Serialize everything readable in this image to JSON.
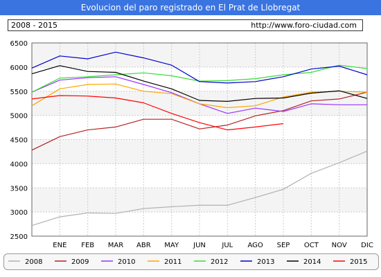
{
  "header": {
    "title": "Evolucion del paro registrado en El Prat de Llobregat",
    "period": "2008 - 2015",
    "url": "http://www.foro-ciudad.com"
  },
  "chart_data": {
    "type": "line",
    "title": "Evolucion del paro registrado en El Prat de Llobregat",
    "xlabel": "",
    "ylabel": "",
    "categories": [
      "",
      "ENE",
      "FEB",
      "MAR",
      "ABR",
      "MAY",
      "JUN",
      "JUL",
      "AGO",
      "SEP",
      "OCT",
      "NOV",
      "DIC"
    ],
    "yticks": [
      2500,
      3000,
      3500,
      4000,
      4500,
      5000,
      5500,
      6000,
      6500
    ],
    "ylim": [
      2500,
      6500
    ],
    "grid": true,
    "legend_position": "bottom",
    "series": [
      {
        "name": "2008",
        "color": "#b0b0b0",
        "values": [
          2720,
          2900,
          2980,
          2970,
          3070,
          3110,
          3140,
          3140,
          3300,
          3470,
          3800,
          4020,
          4260
        ]
      },
      {
        "name": "2009",
        "color": "#b22222",
        "values": [
          4280,
          4560,
          4700,
          4760,
          4920,
          4920,
          4720,
          4800,
          4990,
          5100,
          5300,
          5340,
          5480
        ]
      },
      {
        "name": "2010",
        "color": "#9933ff",
        "values": [
          5480,
          5730,
          5780,
          5800,
          5640,
          5470,
          5240,
          5040,
          5150,
          5080,
          5240,
          5220,
          5220
        ]
      },
      {
        "name": "2011",
        "color": "#ffa500",
        "values": [
          5200,
          5550,
          5640,
          5650,
          5500,
          5450,
          5240,
          5160,
          5200,
          5380,
          5480,
          5500,
          5480
        ]
      },
      {
        "name": "2012",
        "color": "#33dd33",
        "values": [
          5480,
          5770,
          5800,
          5840,
          5880,
          5820,
          5710,
          5720,
          5760,
          5840,
          5890,
          6040,
          5970
        ]
      },
      {
        "name": "2013",
        "color": "#0000cc",
        "values": [
          5980,
          6230,
          6170,
          6310,
          6190,
          6040,
          5700,
          5670,
          5700,
          5800,
          5960,
          6020,
          5840
        ]
      },
      {
        "name": "2014",
        "color": "#000000",
        "values": [
          5860,
          6030,
          5910,
          5890,
          5710,
          5550,
          5310,
          5290,
          5350,
          5360,
          5460,
          5510,
          5350
        ]
      },
      {
        "name": "2015",
        "color": "#ff0000",
        "values": [
          5340,
          5410,
          5400,
          5360,
          5260,
          5040,
          4850,
          4700,
          4760,
          4830,
          null,
          null,
          null
        ]
      }
    ]
  }
}
